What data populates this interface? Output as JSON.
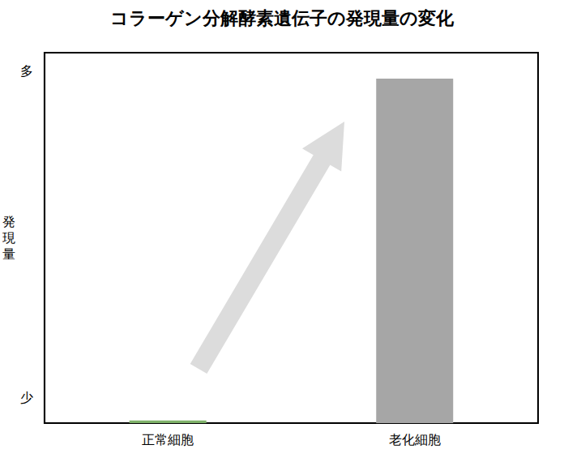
{
  "chart_data": {
    "type": "bar",
    "title": "コラーゲン分解酵素遺伝子の発現量の変化",
    "y_label": "発現量",
    "categories": [
      "正常細胞",
      "老化細胞"
    ],
    "values": [
      0.7,
      93
    ],
    "colors": [
      "#7fb26a",
      "#a6a6a6"
    ],
    "ylim": [
      0,
      100
    ],
    "yticks": [
      {
        "value": 7,
        "label": "少"
      },
      {
        "value": 95,
        "label": "多"
      }
    ],
    "grid": false
  }
}
